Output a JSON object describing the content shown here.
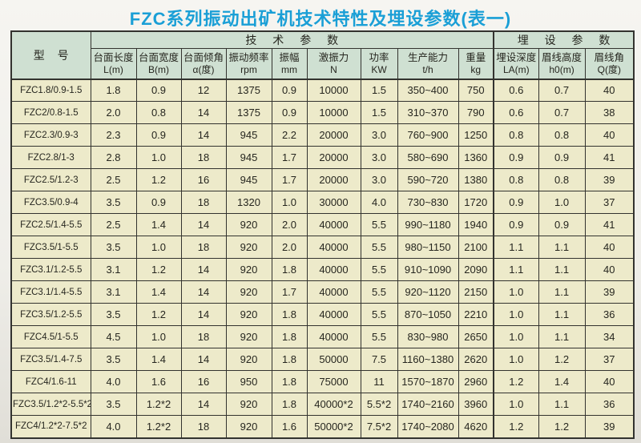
{
  "title": "FZC系列振动出矿机技术特性及埋设参数(表一)",
  "colors": {
    "title_blue": "#1a9fd6",
    "header_green": "#cfe0d2",
    "cell_cream": "#edeaca",
    "border_dark": "#33332f",
    "text_dark": "#26261f"
  },
  "table": {
    "model_header": "型 号",
    "group_headers": [
      {
        "label": "技 术 参 数",
        "span": 9
      },
      {
        "label": "埋 设 参 数",
        "span": 3
      }
    ],
    "columns": [
      {
        "line1": "台面长度",
        "line2": "L(m)"
      },
      {
        "line1": "台面宽度",
        "line2": "B(m)"
      },
      {
        "line1": "台面倾角",
        "line2": "α(度)"
      },
      {
        "line1": "振动频率",
        "line2": "rpm"
      },
      {
        "line1": "振幅",
        "line2": "mm"
      },
      {
        "line1": "激振力",
        "line2": "N"
      },
      {
        "line1": "功率",
        "line2": "KW"
      },
      {
        "line1": "生产能力",
        "line2": "t/h"
      },
      {
        "line1": "重量",
        "line2": "kg"
      },
      {
        "line1": "埋设深度",
        "line2": "LA(m)"
      },
      {
        "line1": "眉线高度",
        "line2": "h0(m)"
      },
      {
        "line1": "眉线角",
        "line2": "Q(度)"
      }
    ],
    "rows": [
      [
        "FZC1.8/0.9-1.5",
        "1.8",
        "0.9",
        "12",
        "1375",
        "0.9",
        "10000",
        "1.5",
        "350~400",
        "750",
        "0.6",
        "0.7",
        "40"
      ],
      [
        "FZC2/0.8-1.5",
        "2.0",
        "0.8",
        "14",
        "1375",
        "0.9",
        "10000",
        "1.5",
        "310~370",
        "790",
        "0.6",
        "0.7",
        "38"
      ],
      [
        "FZC2.3/0.9-3",
        "2.3",
        "0.9",
        "14",
        "945",
        "2.2",
        "20000",
        "3.0",
        "760~900",
        "1250",
        "0.8",
        "0.8",
        "40"
      ],
      [
        "FZC2.8/1-3",
        "2.8",
        "1.0",
        "18",
        "945",
        "1.7",
        "20000",
        "3.0",
        "580~690",
        "1360",
        "0.9",
        "0.9",
        "41"
      ],
      [
        "FZC2.5/1.2-3",
        "2.5",
        "1.2",
        "16",
        "945",
        "1.7",
        "20000",
        "3.0",
        "590~720",
        "1380",
        "0.8",
        "0.8",
        "39"
      ],
      [
        "FZC3.5/0.9-4",
        "3.5",
        "0.9",
        "18",
        "1320",
        "1.0",
        "30000",
        "4.0",
        "730~830",
        "1720",
        "0.9",
        "1.0",
        "37"
      ],
      [
        "FZC2.5/1.4-5.5",
        "2.5",
        "1.4",
        "14",
        "920",
        "2.0",
        "40000",
        "5.5",
        "990~1180",
        "1940",
        "0.9",
        "0.9",
        "41"
      ],
      [
        "FZC3.5/1-5.5",
        "3.5",
        "1.0",
        "18",
        "920",
        "2.0",
        "40000",
        "5.5",
        "980~1150",
        "2100",
        "1.1",
        "1.1",
        "40"
      ],
      [
        "FZC3.1/1.2-5.5",
        "3.1",
        "1.2",
        "14",
        "920",
        "1.8",
        "40000",
        "5.5",
        "910~1090",
        "2090",
        "1.1",
        "1.1",
        "40"
      ],
      [
        "FZC3.1/1.4-5.5",
        "3.1",
        "1.4",
        "14",
        "920",
        "1.7",
        "40000",
        "5.5",
        "920~1120",
        "2150",
        "1.0",
        "1.1",
        "39"
      ],
      [
        "FZC3.5/1.2-5.5",
        "3.5",
        "1.2",
        "14",
        "920",
        "1.8",
        "40000",
        "5.5",
        "870~1050",
        "2210",
        "1.0",
        "1.1",
        "36"
      ],
      [
        "FZC4.5/1-5.5",
        "4.5",
        "1.0",
        "18",
        "920",
        "1.8",
        "40000",
        "5.5",
        "830~980",
        "2650",
        "1.0",
        "1.1",
        "34"
      ],
      [
        "FZC3.5/1.4-7.5",
        "3.5",
        "1.4",
        "14",
        "920",
        "1.8",
        "50000",
        "7.5",
        "1160~1380",
        "2620",
        "1.0",
        "1.2",
        "37"
      ],
      [
        "FZC4/1.6-11",
        "4.0",
        "1.6",
        "16",
        "950",
        "1.8",
        "75000",
        "11",
        "1570~1870",
        "2960",
        "1.2",
        "1.4",
        "40"
      ],
      [
        "FZC3.5/1.2*2-5.5*2",
        "3.5",
        "1.2*2",
        "14",
        "920",
        "1.8",
        "40000*2",
        "5.5*2",
        "1740~2160",
        "3960",
        "1.0",
        "1.1",
        "36"
      ],
      [
        "FZC4/1.2*2-7.5*2",
        "4.0",
        "1.2*2",
        "18",
        "920",
        "1.6",
        "50000*2",
        "7.5*2",
        "1740~2080",
        "4620",
        "1.2",
        "1.2",
        "39"
      ]
    ]
  }
}
